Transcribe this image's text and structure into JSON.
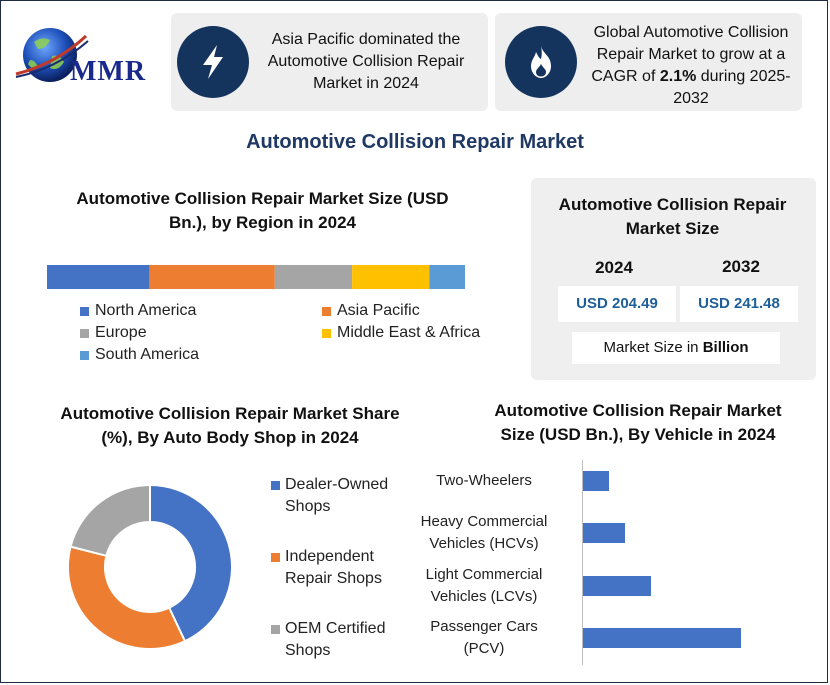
{
  "logo": {
    "text": "MMR"
  },
  "header": {
    "card1": {
      "text": "Asia Pacific dominated the Automotive Collision Repair Market in 2024",
      "icon": "lightning-icon"
    },
    "card2": {
      "text_pre": "Global Automotive Collision Repair Market to grow at a CAGR of ",
      "cagr": "2.1%",
      "text_post": " during 2025-2032",
      "icon": "flame-icon"
    }
  },
  "main_title": "Automotive Collision Repair Market",
  "market_size": {
    "title": "Automotive Collision Repair Market Size",
    "year1": "2024",
    "year2": "2032",
    "value1": "USD 204.49",
    "value2": "USD 241.48",
    "unit_pre": "Market Size in ",
    "unit_bold": "Billion"
  },
  "colors": {
    "blue": "#4472c4",
    "orange": "#ed7d31",
    "gray": "#a5a5a5",
    "yellow": "#ffc000",
    "lightblue": "#5b9bd5",
    "navy": "#14345e"
  },
  "chart_data": [
    {
      "type": "bar",
      "orientation": "horizontal-stacked",
      "title": "Automotive Collision Repair Market Size (USD Bn.), by Region in 2024",
      "series": [
        {
          "name": "North America",
          "value": 24.5
        },
        {
          "name": "Asia Pacific",
          "value": 30.0
        },
        {
          "name": "Europe",
          "value": 18.5
        },
        {
          "name": "Middle East & Africa",
          "value": 18.5
        },
        {
          "name": "South America",
          "value": 8.5
        }
      ],
      "legend_placement": "bottom"
    },
    {
      "type": "pie",
      "variant": "donut",
      "title": "Automotive Collision Repair Market Share (%), By Auto Body Shop in 2024",
      "slices": [
        {
          "name": "Dealer-Owned Shops",
          "value": 43
        },
        {
          "name": "Independent Repair Shops",
          "value": 36
        },
        {
          "name": "OEM Certified Shops",
          "value": 21
        }
      ],
      "legend_placement": "right"
    },
    {
      "type": "bar",
      "orientation": "horizontal",
      "title": "Automotive Collision Repair Market Size (USD Bn.), By Vehicle in 2024",
      "categories": [
        "Two-Wheelers",
        "Heavy Commercial Vehicles (HCVs)",
        "Light Commercial Vehicles (LCVs)",
        "Passenger Cars (PCV)"
      ],
      "category_lines": [
        [
          "Two-Wheelers"
        ],
        [
          "Heavy Commercial",
          "Vehicles (HCVs)"
        ],
        [
          "Light Commercial",
          "Vehicles (LCVs)"
        ],
        [
          "Passenger Cars",
          "(PCV)"
        ]
      ],
      "values": [
        13,
        21,
        34,
        79
      ],
      "xlim": [
        0,
        100
      ],
      "grid": false
    }
  ]
}
